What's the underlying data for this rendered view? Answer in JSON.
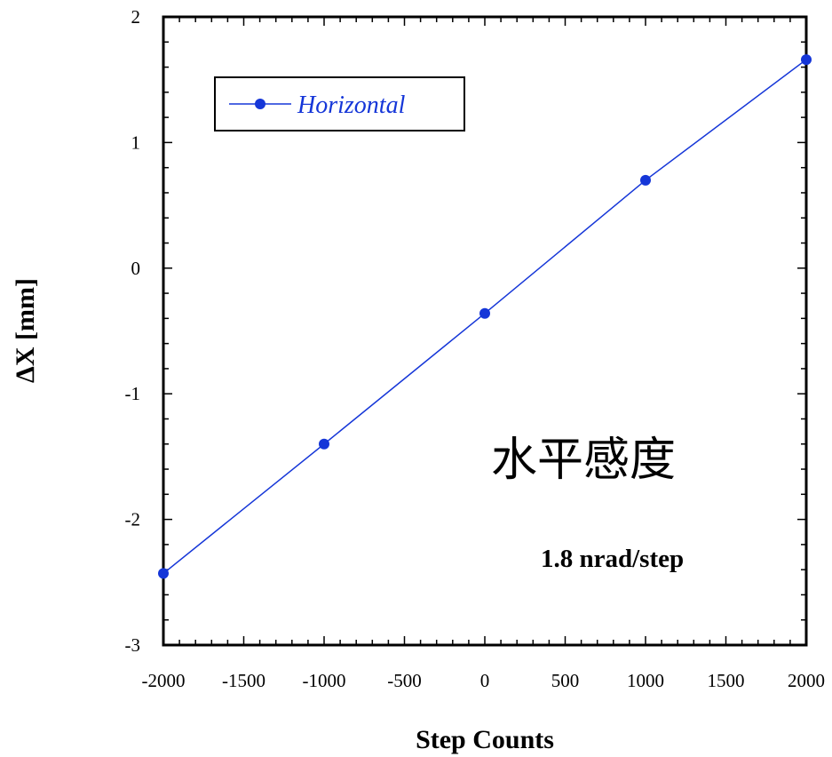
{
  "chart_data": {
    "type": "line",
    "xlabel": "Step Counts",
    "ylabel": "ΔX [mm]",
    "xlim": [
      -2000,
      2000
    ],
    "ylim": [
      -3,
      2
    ],
    "x_ticks": [
      "-2000",
      "-1500",
      "-1000",
      "-500",
      "0",
      "500",
      "1000",
      "1500",
      "2000"
    ],
    "y_ticks": [
      "2",
      "1",
      "0",
      "-1",
      "-2",
      "-3"
    ],
    "grid": false,
    "legend_position": "top-left",
    "series": [
      {
        "name": "Horizontal",
        "color": "#1536d8",
        "x": [
          -2000,
          -1000,
          0,
          1000,
          2000
        ],
        "y": [
          -2.43,
          -1.4,
          -0.36,
          0.7,
          1.66
        ]
      }
    ],
    "annotations": [
      "水平感度",
      "1.8 nrad/step"
    ]
  }
}
